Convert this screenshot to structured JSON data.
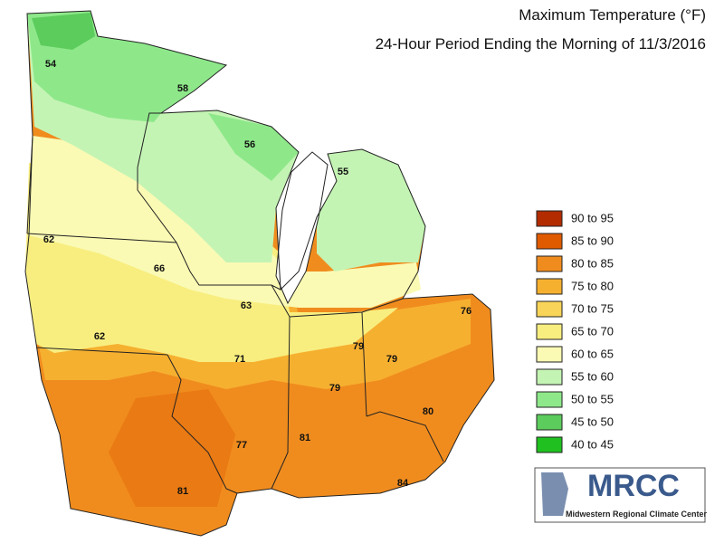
{
  "header": {
    "title": "Maximum Temperature (°F)",
    "subtitle": "24-Hour Period Ending the Morning of 11/3/2016"
  },
  "legend": [
    {
      "label": "90 to 95",
      "color": "#b22c00"
    },
    {
      "label": "85 to 90",
      "color": "#e05a00"
    },
    {
      "label": "80 to 85",
      "color": "#f08c1e"
    },
    {
      "label": "75 to 80",
      "color": "#f6b030"
    },
    {
      "label": "70 to 75",
      "color": "#f8d458"
    },
    {
      "label": "65 to 70",
      "color": "#f8ee80"
    },
    {
      "label": "60 to 65",
      "color": "#fafab4"
    },
    {
      "label": "55 to 60",
      "color": "#c4f4b4"
    },
    {
      "label": "50 to 55",
      "color": "#8ee88a"
    },
    {
      "label": "45 to 50",
      "color": "#5ccc5c"
    },
    {
      "label": "40 to 45",
      "color": "#20c020"
    }
  ],
  "stations": [
    54,
    58,
    56,
    55,
    62,
    66,
    63,
    76,
    62,
    79,
    71,
    79,
    79,
    80,
    81,
    77,
    84,
    81
  ],
  "logo": {
    "name": "MRCC",
    "full_name": "Midwestern Regional Climate Center"
  }
}
